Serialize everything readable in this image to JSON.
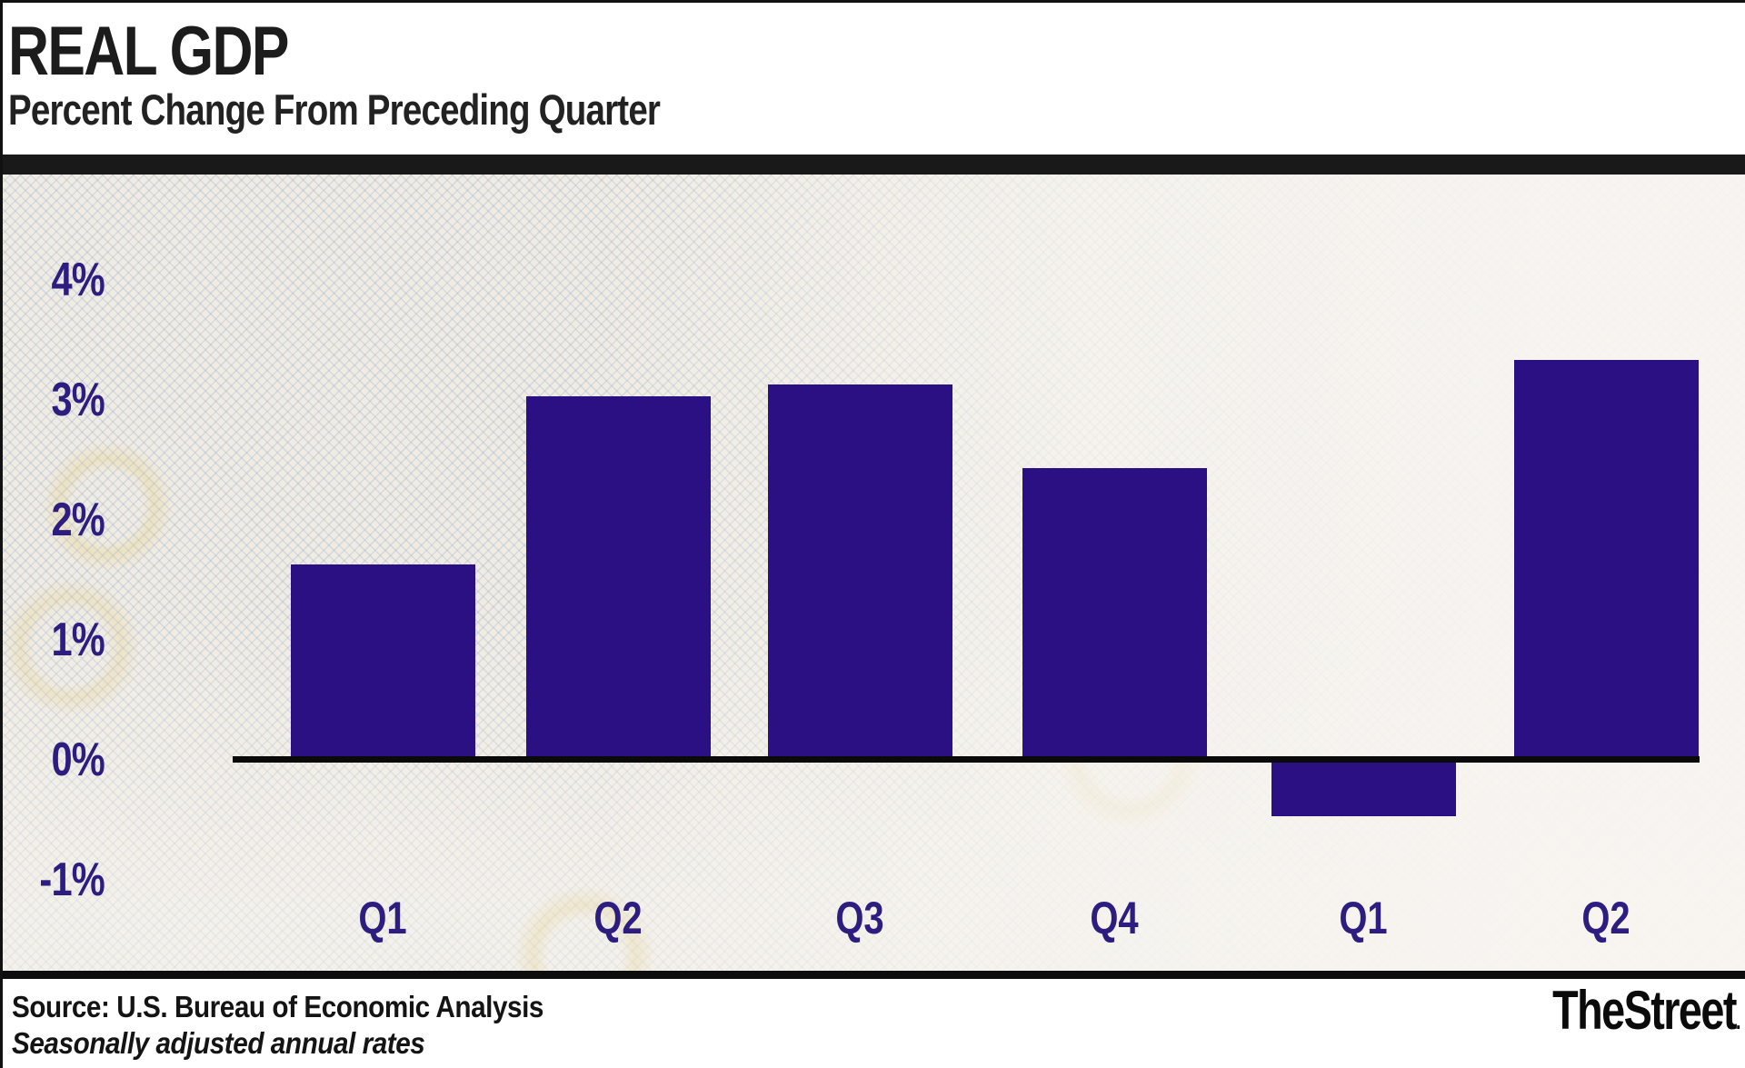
{
  "header": {
    "title": "REAL GDP",
    "subtitle": "Percent Change From Preceding Quarter"
  },
  "chart_data": {
    "type": "bar",
    "title": "REAL GDP",
    "subtitle": "Percent Change From Preceding Quarter",
    "categories": [
      "Q1",
      "Q2",
      "Q3",
      "Q4",
      "Q1",
      "Q2"
    ],
    "values": [
      1.6,
      3.0,
      3.1,
      2.4,
      -0.5,
      3.3
    ],
    "unit": "%",
    "ytick_labels": [
      "4%",
      "3%",
      "2%",
      "1%",
      "0%",
      "-1%"
    ],
    "ytick_values": [
      4,
      3,
      2,
      1,
      0,
      -1
    ],
    "ylim": [
      -1.5,
      4.5
    ],
    "grid": false,
    "legend": "none",
    "baseline_value": 0,
    "bar_color": "#2a1082",
    "axis_label_color": "#2d1d80",
    "baseline_color": "#0a0a0a"
  },
  "footer": {
    "source": "Source: U.S. Bureau of Economic Analysis",
    "note": "Seasonally adjusted annual rates",
    "brand": "TheStreet",
    "brand_suffix": "."
  }
}
